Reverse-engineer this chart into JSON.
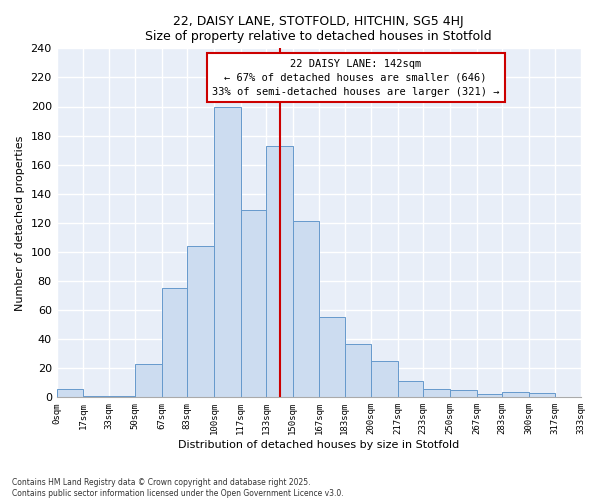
{
  "title": "22, DAISY LANE, STOTFOLD, HITCHIN, SG5 4HJ",
  "subtitle": "Size of property relative to detached houses in Stotfold",
  "xlabel": "Distribution of detached houses by size in Stotfold",
  "ylabel": "Number of detached properties",
  "bar_edges": [
    0,
    17,
    33,
    50,
    67,
    83,
    100,
    117,
    133,
    150,
    167,
    183,
    200,
    217,
    233,
    250,
    267,
    283,
    300,
    317,
    333
  ],
  "bar_heights": [
    6,
    1,
    1,
    23,
    75,
    104,
    200,
    129,
    173,
    121,
    55,
    37,
    25,
    11,
    6,
    5,
    2,
    4,
    3,
    0
  ],
  "bar_color": "#ccdcf0",
  "bar_edge_color": "#6699cc",
  "vline_x": 142,
  "vline_color": "#cc0000",
  "annotation_title": "22 DAISY LANE: 142sqm",
  "annotation_line1": "← 67% of detached houses are smaller (646)",
  "annotation_line2": "33% of semi-detached houses are larger (321) →",
  "annotation_box_facecolor": "#ffffff",
  "annotation_box_edgecolor": "#cc0000",
  "ylim": [
    0,
    240
  ],
  "yticks": [
    0,
    20,
    40,
    60,
    80,
    100,
    120,
    140,
    160,
    180,
    200,
    220,
    240
  ],
  "tick_labels": [
    "0sqm",
    "17sqm",
    "33sqm",
    "50sqm",
    "67sqm",
    "83sqm",
    "100sqm",
    "117sqm",
    "133sqm",
    "150sqm",
    "167sqm",
    "183sqm",
    "200sqm",
    "217sqm",
    "233sqm",
    "250sqm",
    "267sqm",
    "283sqm",
    "300sqm",
    "317sqm",
    "333sqm"
  ],
  "footer1": "Contains HM Land Registry data © Crown copyright and database right 2025.",
  "footer2": "Contains public sector information licensed under the Open Government Licence v3.0.",
  "background_color": "#ffffff",
  "plot_bg_color": "#e8eef8",
  "grid_color": "#ffffff"
}
